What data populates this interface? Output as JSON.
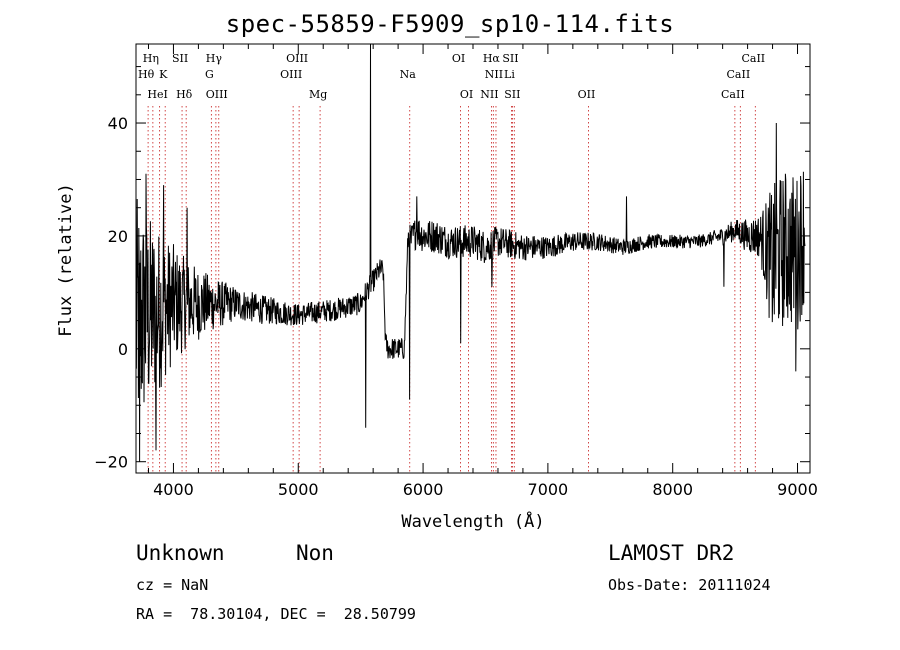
{
  "title": "spec-55859-F5909_sp10-114.fits",
  "info": {
    "class_label": "Unknown",
    "subclass_label": "Non",
    "cz_label": "cz = NaN",
    "survey_label": "LAMOST DR2",
    "obs_date_label": "Obs-Date: 20111024",
    "coords_label": "RA =  78.30104, DEC =  28.50799"
  },
  "chart_data": {
    "type": "line",
    "title": "spec-55859-F5909_sp10-114.fits",
    "xlabel": "Wavelength (Å)",
    "ylabel": "Flux (relative)",
    "xlim": [
      3700,
      9100
    ],
    "ylim": [
      -22,
      54
    ],
    "x_ticks": [
      4000,
      5000,
      6000,
      7000,
      8000,
      9000
    ],
    "y_ticks": [
      -20,
      0,
      20,
      40
    ],
    "grid": false,
    "line_color": "#000000",
    "marker_color": "#000000",
    "spectrum_anchors": {
      "x": [
        3700,
        3800,
        3900,
        4000,
        4100,
        4200,
        4300,
        4400,
        4500,
        4700,
        5000,
        5300,
        5500,
        5540,
        5600,
        5650,
        5680,
        5700,
        5720,
        5800,
        5850,
        5880,
        5900,
        5950,
        6000,
        6100,
        6200,
        6300,
        6400,
        6500,
        6600,
        6800,
        7000,
        7200,
        7400,
        7600,
        7800,
        8000,
        8200,
        8400,
        8500,
        8600,
        8700,
        8800,
        8900,
        9000,
        9060
      ],
      "y": [
        5,
        6,
        7,
        8,
        8,
        8,
        8,
        8,
        8,
        7,
        6,
        7,
        8,
        10,
        12,
        14,
        14,
        1,
        0,
        0,
        0,
        20,
        19,
        21,
        20,
        20,
        19,
        19,
        19,
        18,
        19,
        18,
        18,
        19,
        19,
        18,
        19,
        19,
        19,
        20,
        21,
        20,
        20,
        15,
        18,
        17,
        22
      ]
    },
    "noise_profile": {
      "x": [
        3700,
        3950,
        4100,
        4300,
        4500,
        5000,
        5500,
        5850,
        5900,
        6500,
        7000,
        7500,
        8000,
        8300,
        8500,
        8700,
        8800,
        9060
      ],
      "amp": [
        22,
        12,
        8,
        5,
        3,
        2,
        2,
        2,
        3,
        3,
        2,
        1.5,
        1.2,
        1.2,
        2,
        4,
        14,
        14
      ]
    },
    "spikes": [
      {
        "x": 5577,
        "y": 54
      },
      {
        "x": 5540,
        "y": -14
      },
      {
        "x": 5892,
        "y": -9
      },
      {
        "x": 5950,
        "y": 27
      },
      {
        "x": 6300,
        "y": 1
      },
      {
        "x": 6550,
        "y": 11
      },
      {
        "x": 7630,
        "y": 27
      },
      {
        "x": 8410,
        "y": 11
      },
      {
        "x": 8830,
        "y": 40
      },
      {
        "x": 8985,
        "y": -4
      },
      {
        "x": 3730,
        "y": -20
      },
      {
        "x": 3780,
        "y": 31
      },
      {
        "x": 3920,
        "y": 29
      },
      {
        "x": 3860,
        "y": -18
      },
      {
        "x": 4110,
        "y": 25
      }
    ],
    "lines": [
      {
        "name": "Hη",
        "x": 3835,
        "row": 0
      },
      {
        "name": "Hθ",
        "x": 3797,
        "row": 1
      },
      {
        "name": "K",
        "x": 3934,
        "row": 1
      },
      {
        "name": "HeI",
        "x": 3889,
        "row": 2
      },
      {
        "name": "SII",
        "x": 4069,
        "row": 0
      },
      {
        "name": "Hδ",
        "x": 4102,
        "row": 2
      },
      {
        "name": "Hγ",
        "x": 4340,
        "row": 0
      },
      {
        "name": "G",
        "x": 4304,
        "row": 1
      },
      {
        "name": "OIII",
        "x": 4363,
        "row": 2
      },
      {
        "name": "OIII",
        "x": 5007,
        "row": 0
      },
      {
        "name": "OIII",
        "x": 4959,
        "row": 1
      },
      {
        "name": "Mg",
        "x": 5175,
        "row": 2
      },
      {
        "name": "Na",
        "x": 5893,
        "row": 1
      },
      {
        "name": "OI",
        "x": 6300,
        "row": 0
      },
      {
        "name": "OI",
        "x": 6364,
        "row": 2
      },
      {
        "name": "Hα",
        "x": 6563,
        "row": 0
      },
      {
        "name": "SII",
        "x": 6716,
        "row": 0
      },
      {
        "name": "NII",
        "x": 6584,
        "row": 1
      },
      {
        "name": "Li",
        "x": 6708,
        "row": 1
      },
      {
        "name": "NII",
        "x": 6548,
        "row": 2
      },
      {
        "name": "SII",
        "x": 6731,
        "row": 2
      },
      {
        "name": "OII",
        "x": 7325,
        "row": 2
      },
      {
        "name": "CaII",
        "x": 8662,
        "row": 0
      },
      {
        "name": "CaII",
        "x": 8542,
        "row": 1
      },
      {
        "name": "CaII",
        "x": 8498,
        "row": 2
      }
    ],
    "line_marker_positions": [
      3797,
      3835,
      3889,
      3934,
      4069,
      4102,
      4304,
      4340,
      4363,
      4959,
      5007,
      5175,
      5893,
      6300,
      6364,
      6548,
      6563,
      6584,
      6708,
      6716,
      6731,
      7325,
      8498,
      8542,
      8662
    ]
  }
}
